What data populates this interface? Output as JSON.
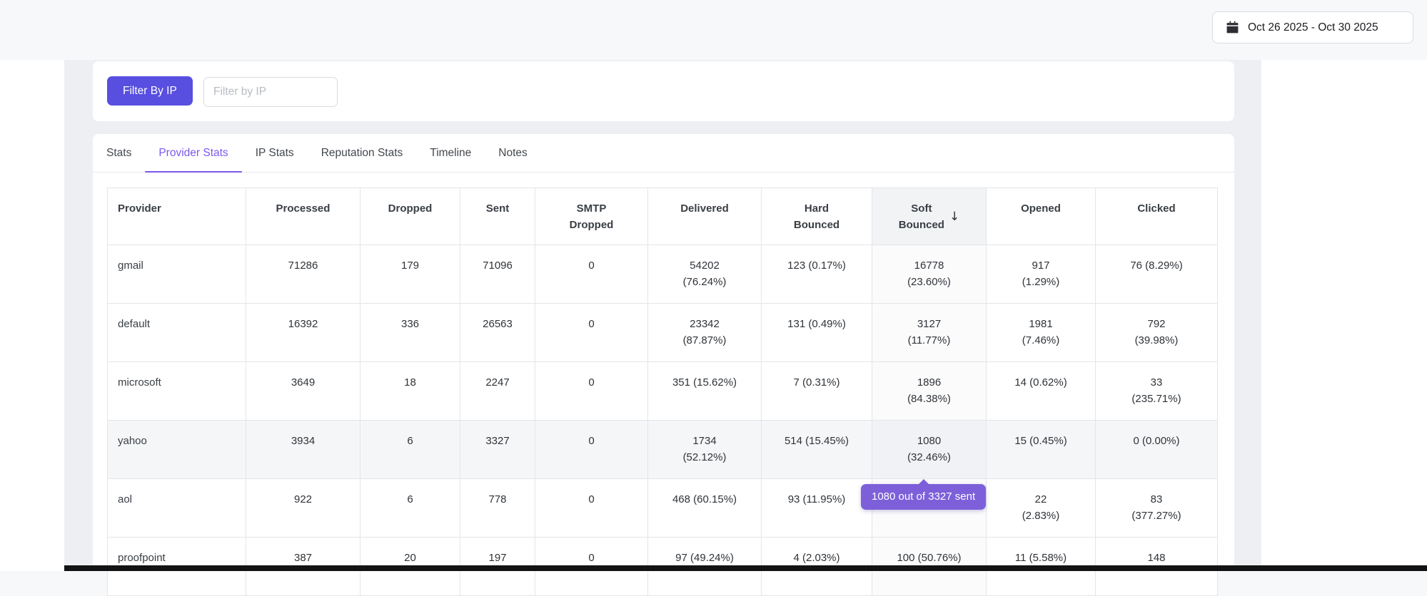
{
  "topbar": {
    "date_range_label": "Oct 26 2025 - Oct 30 2025"
  },
  "filter_card": {
    "button_label": "Filter By IP",
    "input_placeholder": "Filter by IP",
    "input_value": ""
  },
  "tabs": {
    "items": [
      {
        "label": "Stats",
        "active": false
      },
      {
        "label": "Provider Stats",
        "active": true
      },
      {
        "label": "IP Stats",
        "active": false
      },
      {
        "label": "Reputation Stats",
        "active": false
      },
      {
        "label": "Timeline",
        "active": false
      },
      {
        "label": "Notes",
        "active": false
      }
    ]
  },
  "provider_table": {
    "columns": [
      {
        "label": "Provider",
        "sorted": false
      },
      {
        "label": "Processed",
        "sorted": false
      },
      {
        "label": "Dropped",
        "sorted": false
      },
      {
        "label": "Sent",
        "sorted": false
      },
      {
        "label": "SMTP\nDropped",
        "sorted": false
      },
      {
        "label": "Delivered",
        "sorted": false
      },
      {
        "label": "Hard\nBounced",
        "sorted": false
      },
      {
        "label": "Soft\nBounced",
        "sorted": true,
        "sort_direction": "desc",
        "sort_icon": "↓"
      },
      {
        "label": "Opened",
        "sorted": false
      },
      {
        "label": "Clicked",
        "sorted": false
      }
    ],
    "sorted_column_index": 7,
    "hovered_row": "yahoo",
    "rows": [
      {
        "provider": "gmail",
        "cells": [
          "71286",
          "179",
          "71096",
          "0",
          "54202\n(76.24%)",
          "123 (0.17%)",
          "16778\n(23.60%)",
          "917\n(1.29%)",
          "76 (8.29%)"
        ]
      },
      {
        "provider": "default",
        "cells": [
          "16392",
          "336",
          "26563",
          "0",
          "23342\n(87.87%)",
          "131 (0.49%)",
          "3127\n(11.77%)",
          "1981\n(7.46%)",
          "792\n(39.98%)"
        ]
      },
      {
        "provider": "microsoft",
        "cells": [
          "3649",
          "18",
          "2247",
          "0",
          "351 (15.62%)",
          "7 (0.31%)",
          "1896\n(84.38%)",
          "14 (0.62%)",
          "33\n(235.71%)"
        ]
      },
      {
        "provider": "yahoo",
        "cells": [
          "3934",
          "6",
          "3327",
          "0",
          "1734\n(52.12%)",
          "514 (15.45%)",
          "1080\n(32.46%)",
          "15 (0.45%)",
          "0 (0.00%)"
        ]
      },
      {
        "provider": "aol",
        "cells": [
          "922",
          "6",
          "778",
          "0",
          "468 (60.15%)",
          "93 (11.95%)",
          "",
          "22\n(2.83%)",
          "83\n(377.27%)"
        ]
      },
      {
        "provider": "proofpoint",
        "cells": [
          "387",
          "20",
          "197",
          "0",
          "97 (49.24%)",
          "4 (2.03%)",
          "100 (50.76%)",
          "11 (5.58%)",
          "148"
        ]
      }
    ]
  },
  "tooltip": {
    "text": "1080 out of 3327 sent"
  },
  "colors": {
    "accent": "#584ee0",
    "tab_active": "#7d58ec",
    "tooltip_bg": "#7d60d9",
    "page_background": "#edeff3",
    "topbar_background": "#f7f8fa",
    "table_border": "#e3e5e9",
    "bottom_bar": "#131313"
  }
}
